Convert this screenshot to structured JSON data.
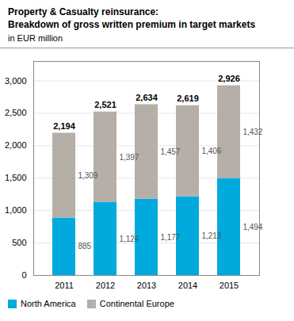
{
  "chart_data": {
    "type": "bar",
    "title": "Property & Casualty reinsurance:\nBreakdown of gross written premium in target markets",
    "subtitle": "in EUR million",
    "categories": [
      "2011",
      "2012",
      "2013",
      "2014",
      "2015"
    ],
    "series": [
      {
        "name": "North America",
        "color": "#00AADD",
        "values": [
          885,
          1124,
          1177,
          1213,
          1494
        ],
        "value_labels": [
          "885",
          "1,124",
          "1,177",
          "1,213",
          "1,494"
        ]
      },
      {
        "name": "Continental Europe",
        "color": "#B5AFA8",
        "values": [
          1309,
          1397,
          1457,
          1406,
          1432
        ],
        "value_labels": [
          "1,309",
          "1,397",
          "1,457",
          "1,406",
          "1,432"
        ]
      }
    ],
    "totals": [
      2194,
      2521,
      2634,
      2619,
      2926
    ],
    "total_labels": [
      "2,194",
      "2,521",
      "2,634",
      "2,619",
      "2,926"
    ],
    "ylim": [
      0,
      3300
    ],
    "yticks": [
      0,
      500,
      {
        "value": 1000,
        "label": "1,000"
      },
      {
        "value": 1500,
        "label": "1,500"
      },
      {
        "value": 2000,
        "label": "2,000"
      },
      {
        "value": 2500,
        "label": "2,500"
      },
      {
        "value": 3000,
        "label": "3,000"
      }
    ],
    "grid": true,
    "stacked": true,
    "data_labels": true,
    "legend": "bottom"
  }
}
